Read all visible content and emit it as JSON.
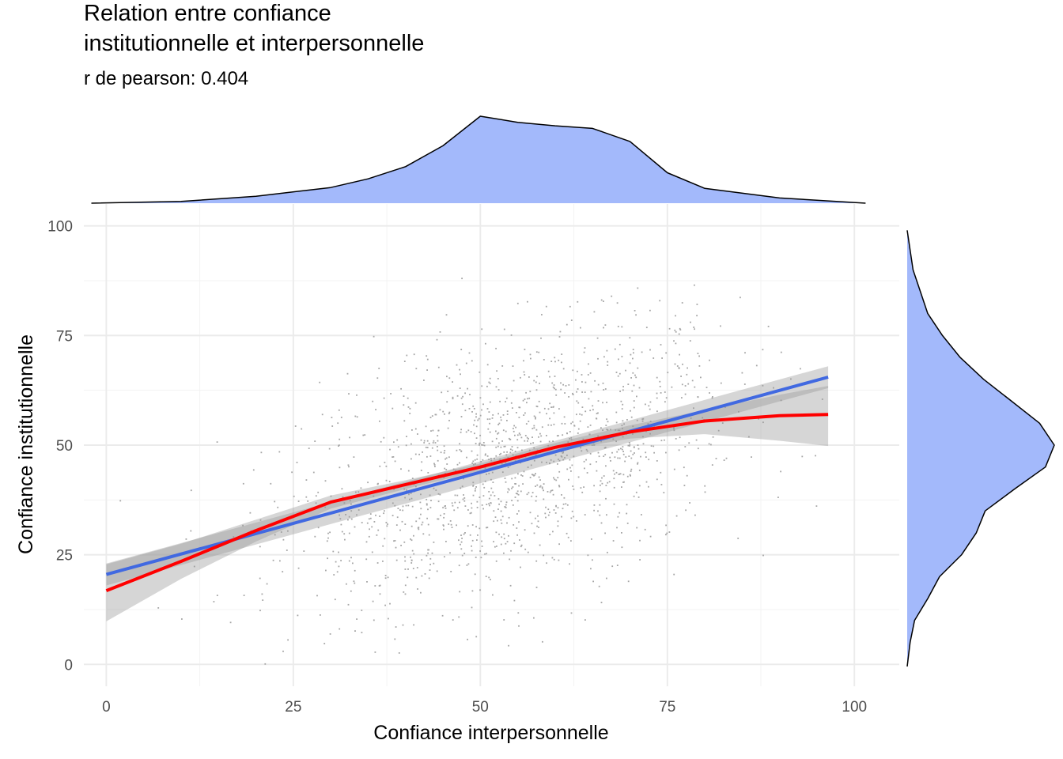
{
  "chart_data": {
    "type": "scatter",
    "title_lines": [
      "Relation entre confiance",
      "institutionnelle et interpersonnelle"
    ],
    "subtitle": "r de pearson:  0.404",
    "xlabel": "Confiance interpersonnelle",
    "ylabel": "Confiance institutionnelle",
    "xlim": [
      -3,
      106
    ],
    "ylim": [
      -5,
      105
    ],
    "x_ticks": [
      0,
      25,
      50,
      75,
      100
    ],
    "x_tick_labels": [
      "0",
      "25",
      "50",
      "75",
      "100"
    ],
    "y_ticks": [
      0,
      25,
      50,
      75,
      100
    ],
    "y_tick_labels": [
      "0",
      "25",
      "50",
      "75",
      "100"
    ],
    "grid": true,
    "legend": "none",
    "points": {
      "color": "#a6a6a6",
      "approx_count": 1500,
      "x_center": 54,
      "x_sd": 15,
      "y_intercept": 20.5,
      "y_slope": 0.46,
      "y_noise_sd": 14
    },
    "linear_fit": {
      "name": "lm",
      "color": "#4169e1",
      "x": [
        0,
        96.5
      ],
      "y": [
        20.5,
        65.5
      ],
      "ci_lower": [
        18,
        63
      ],
      "ci_upper": [
        23,
        68
      ]
    },
    "loess_fit": {
      "name": "loess",
      "color": "#ff0000",
      "x": [
        0,
        10,
        20,
        30,
        40,
        50,
        60,
        70,
        80,
        90,
        96.5
      ],
      "y": [
        16.8,
        23.5,
        30.5,
        37.0,
        41.0,
        45.0,
        49.5,
        53.0,
        55.5,
        56.7,
        57.0
      ],
      "ci_lower": [
        9.8,
        19.5,
        28.0,
        35.5,
        40.0,
        44.2,
        48.5,
        51.5,
        52.5,
        51.0,
        49.8
      ],
      "ci_upper": [
        22.8,
        27.5,
        33.0,
        38.5,
        42.0,
        45.8,
        50.5,
        54.5,
        58.0,
        61.5,
        63.5
      ]
    },
    "marginal_x_density": {
      "fill": "#a3b9fb",
      "x": [
        -2,
        10,
        20,
        30,
        35,
        40,
        45,
        50,
        55,
        60,
        65,
        70,
        75,
        80,
        90,
        101.5
      ],
      "density": [
        0.0,
        0.02,
        0.08,
        0.18,
        0.28,
        0.42,
        0.66,
        1.0,
        0.93,
        0.89,
        0.86,
        0.71,
        0.35,
        0.17,
        0.06,
        0.0
      ]
    },
    "marginal_y_density": {
      "fill": "#a3b9fb",
      "y": [
        -0.5,
        5,
        10,
        15,
        20,
        25,
        30,
        35,
        40,
        45,
        50,
        55,
        60,
        65,
        70,
        75,
        80,
        85,
        90,
        99
      ],
      "density": [
        0.0,
        0.02,
        0.05,
        0.14,
        0.22,
        0.37,
        0.47,
        0.53,
        0.73,
        0.94,
        1.0,
        0.9,
        0.71,
        0.52,
        0.36,
        0.24,
        0.14,
        0.09,
        0.04,
        0.0
      ]
    }
  }
}
